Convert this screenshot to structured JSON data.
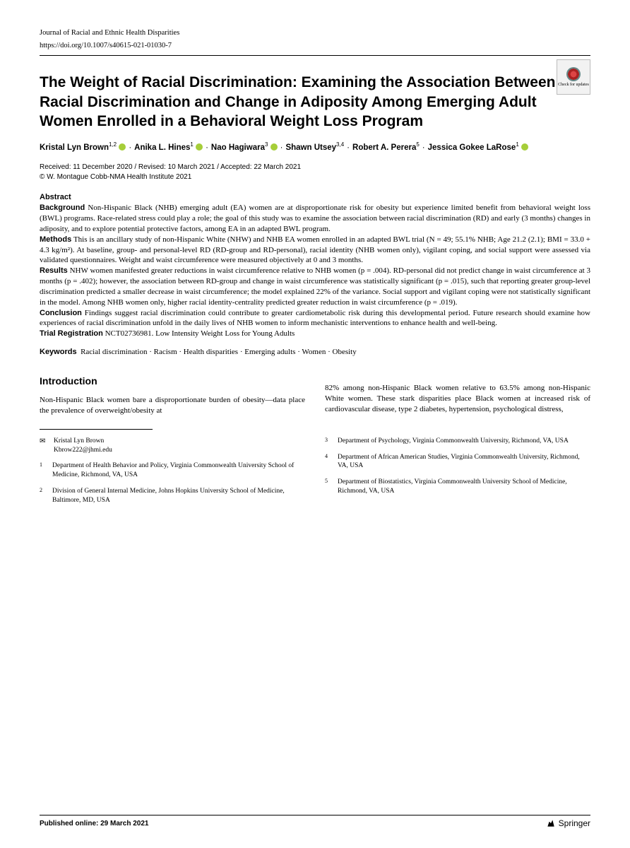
{
  "journal": "Journal of Racial and Ethnic Health Disparities",
  "doi": "https://doi.org/10.1007/s40615-021-01030-7",
  "check_updates": "Check for updates",
  "title": "The Weight of Racial Discrimination: Examining the Association Between Racial Discrimination and Change in Adiposity Among Emerging Adult Women Enrolled in a Behavioral Weight Loss Program",
  "authors_html": "Kristal Lyn Brown<sup>1,2</sup> ● · Anika L. Hines<sup>1</sup> ● · Nao Hagiwara<sup>3</sup> ● · Shawn Utsey<sup>3,4</sup> · Robert A. Perera<sup>5</sup> · Jessica Gokee LaRose<sup>1</sup> ●",
  "authors": [
    {
      "name": "Kristal Lyn Brown",
      "aff": "1,2",
      "orcid": true
    },
    {
      "name": "Anika L. Hines",
      "aff": "1",
      "orcid": true
    },
    {
      "name": "Nao Hagiwara",
      "aff": "3",
      "orcid": true
    },
    {
      "name": "Shawn Utsey",
      "aff": "3,4",
      "orcid": false
    },
    {
      "name": "Robert A. Perera",
      "aff": "5",
      "orcid": false
    },
    {
      "name": "Jessica Gokee LaRose",
      "aff": "1",
      "orcid": true
    }
  ],
  "dates_line1": "Received: 11 December 2020 / Revised: 10 March 2021 / Accepted: 22 March 2021",
  "dates_line2": "© W. Montague Cobb-NMA Health Institute 2021",
  "abstract_label": "Abstract",
  "abs_background_h": "Background",
  "abs_background": "Non-Hispanic Black (NHB) emerging adult (EA) women are at disproportionate risk for obesity but experience limited benefit from behavioral weight loss (BWL) programs. Race-related stress could play a role; the goal of this study was to examine the association between racial discrimination (RD) and early (3 months) changes in adiposity, and to explore potential protective factors, among EA in an adapted BWL program.",
  "abs_methods_h": "Methods",
  "abs_methods": "This is an ancillary study of non-Hispanic White (NHW) and NHB EA women enrolled in an adapted BWL trial (N = 49; 55.1% NHB; Age 21.2 (2.1); BMI = 33.0 + 4.3 kg/m²). At baseline, group- and personal-level RD (RD-group and RD-personal), racial identity (NHB women only), vigilant coping, and social support were assessed via validated questionnaires. Weight and waist circumference were measured objectively at 0 and 3 months.",
  "abs_results_h": "Results",
  "abs_results": "NHW women manifested greater reductions in waist circumference relative to NHB women (p = .004). RD-personal did not predict change in waist circumference at 3 months (p = .402); however, the association between RD-group and change in waist circumference was statistically significant (p = .015), such that reporting greater group-level discrimination predicted a smaller decrease in waist circumference; the model explained 22% of the variance. Social support and vigilant coping were not statistically significant in the model. Among NHB women only, higher racial identity-centrality predicted greater reduction in waist circumference (p = .019).",
  "abs_conclusion_h": "Conclusion",
  "abs_conclusion": "Findings suggest racial discrimination could contribute to greater cardiometabolic risk during this developmental period. Future research should examine how experiences of racial discrimination unfold in the daily lives of NHB women to inform mechanistic interventions to enhance health and well-being.",
  "abs_trial_h": "Trial Registration",
  "abs_trial": "NCT02736981. Low Intensity Weight Loss for Young Adults",
  "keywords_label": "Keywords",
  "keywords": "Racial discrimination · Racism · Health disparities · Emerging adults · Women · Obesity",
  "intro_heading": "Introduction",
  "intro_col1": "Non-Hispanic Black women bare a disproportionate burden of obesity—data place the prevalence of overweight/obesity at",
  "intro_col2": "82% among non-Hispanic Black women relative to 63.5% among non-Hispanic White women. These stark disparities place Black women at increased risk of cardiovascular disease, type 2 diabetes, hypertension, psychological distress,",
  "corresp_name": "Kristal Lyn Brown",
  "corresp_email": "Kbrow222@jhmi.edu",
  "affiliations_left": [
    {
      "n": "1",
      "text": "Department of Health Behavior and Policy, Virginia Commonwealth University School of Medicine, Richmond, VA, USA"
    },
    {
      "n": "2",
      "text": "Division of General Internal Medicine, Johns Hopkins University School of Medicine, Baltimore, MD, USA"
    }
  ],
  "affiliations_right": [
    {
      "n": "3",
      "text": "Department of Psychology, Virginia Commonwealth University, Richmond, VA, USA"
    },
    {
      "n": "4",
      "text": "Department of African American Studies, Virginia Commonwealth University, Richmond, VA, USA"
    },
    {
      "n": "5",
      "text": "Department of Biostatistics, Virginia Commonwealth University School of Medicine, Richmond, VA, USA"
    }
  ],
  "published": "Published online: 29 March 2021",
  "publisher": "Springer"
}
